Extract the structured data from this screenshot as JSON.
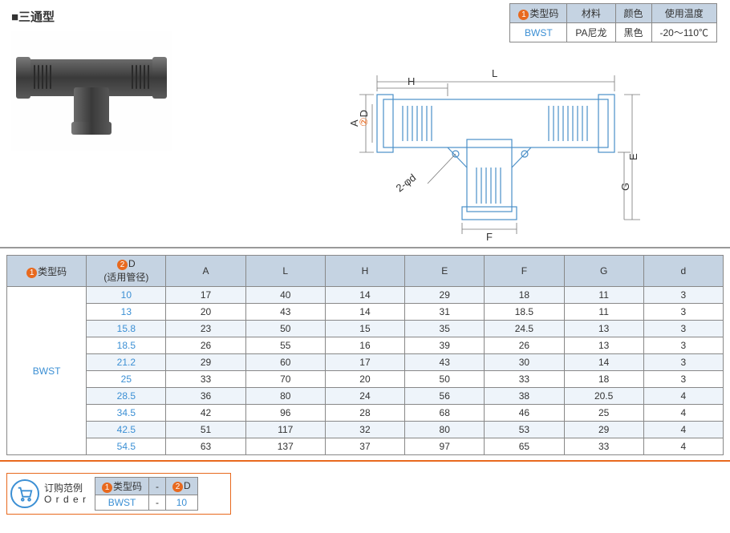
{
  "title": "■三通型",
  "material_table": {
    "headers": [
      "类型码",
      "材料",
      "颜色",
      "使用温度"
    ],
    "row": [
      "BWST",
      "PA尼龙",
      "黑色",
      "-20～110℃"
    ]
  },
  "diagram": {
    "labels": {
      "L": "L",
      "H": "H",
      "A": "A",
      "D": "D",
      "E": "E",
      "G": "G",
      "F": "F",
      "d": "2-φd"
    },
    "stroke": "#4a8fc7",
    "thin": "#888",
    "line_width": 1
  },
  "spec_table": {
    "headers": [
      "类型码",
      "D\n(适用管径)",
      "A",
      "L",
      "H",
      "E",
      "F",
      "G",
      "d"
    ],
    "code": "BWST",
    "rows": [
      [
        "10",
        "17",
        "40",
        "14",
        "29",
        "18",
        "11",
        "3"
      ],
      [
        "13",
        "20",
        "43",
        "14",
        "31",
        "18.5",
        "11",
        "3"
      ],
      [
        "15.8",
        "23",
        "50",
        "15",
        "35",
        "24.5",
        "13",
        "3"
      ],
      [
        "18.5",
        "26",
        "55",
        "16",
        "39",
        "26",
        "13",
        "3"
      ],
      [
        "21.2",
        "29",
        "60",
        "17",
        "43",
        "30",
        "14",
        "3"
      ],
      [
        "25",
        "33",
        "70",
        "20",
        "50",
        "33",
        "18",
        "3"
      ],
      [
        "28.5",
        "36",
        "80",
        "24",
        "56",
        "38",
        "20.5",
        "4"
      ],
      [
        "34.5",
        "42",
        "96",
        "28",
        "68",
        "46",
        "25",
        "4"
      ],
      [
        "42.5",
        "51",
        "117",
        "32",
        "80",
        "53",
        "29",
        "4"
      ],
      [
        "54.5",
        "63",
        "137",
        "37",
        "97",
        "65",
        "33",
        "4"
      ]
    ]
  },
  "order": {
    "label_cn": "订购范例",
    "label_en": "O r d e r",
    "headers": [
      "类型码",
      "-",
      "D"
    ],
    "row": [
      "BWST",
      "-",
      "10"
    ]
  },
  "colors": {
    "header_bg": "#c5d3e2",
    "accent": "#e8691e",
    "blue": "#3b8fd4",
    "row_alt": "#eef4fa"
  }
}
